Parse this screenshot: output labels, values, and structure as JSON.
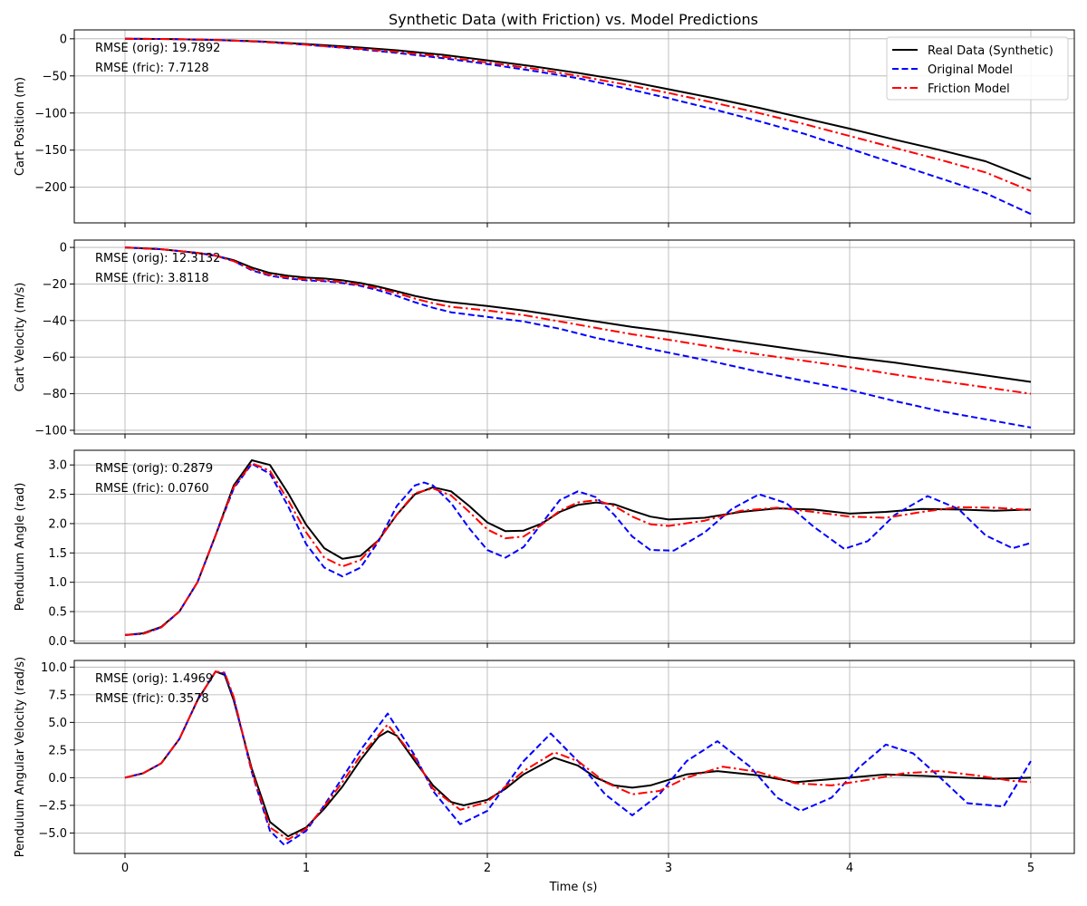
{
  "figure": {
    "title": "Synthetic Data (with Friction) vs. Model Predictions",
    "xlabel": "Time (s)"
  },
  "colors": {
    "real": "#000000",
    "original": "#0000ff",
    "friction": "#ff0000",
    "grid": "#b0b0b0"
  },
  "legend": {
    "placement": "upper-right of first panel",
    "entries": [
      {
        "label": "Real Data (Synthetic)",
        "color": "#000000",
        "style": "solid"
      },
      {
        "label": "Original Model",
        "color": "#0000ff",
        "style": "dashed"
      },
      {
        "label": "Friction Model",
        "color": "#ff0000",
        "style": "dashdot"
      }
    ]
  },
  "chart_data": [
    {
      "type": "line",
      "ylabel": "Cart Position (m)",
      "xlim": [
        -0.28,
        5.24
      ],
      "ylim": [
        -248,
        12
      ],
      "xticks": [
        0,
        1,
        2,
        3,
        4,
        5
      ],
      "xtick_labels": [],
      "yticks": [
        0,
        -50,
        -100,
        -150,
        -200
      ],
      "ytick_labels": [
        "0",
        "−50",
        "−100",
        "−150",
        "−200"
      ],
      "grid": true,
      "annotations": [
        "RMSE (orig): 19.7892",
        "RMSE (fric): 7.7128"
      ],
      "series": [
        {
          "name": "Real Data (Synthetic)",
          "key": "real",
          "x": [
            0,
            0.25,
            0.5,
            0.75,
            1,
            1.25,
            1.5,
            1.75,
            2,
            2.25,
            2.5,
            2.75,
            3,
            3.25,
            3.5,
            3.75,
            4,
            4.25,
            4.5,
            4.75,
            5
          ],
          "y": [
            0,
            -0.3,
            -1.5,
            -3.5,
            -7,
            -11,
            -15.5,
            -21.5,
            -29,
            -37,
            -46,
            -56,
            -68,
            -80,
            -93,
            -107,
            -121,
            -136,
            -150,
            -165,
            -189
          ]
        },
        {
          "name": "Original Model",
          "key": "original",
          "x": [
            0,
            0.25,
            0.5,
            0.75,
            1,
            1.25,
            1.5,
            1.75,
            2,
            2.25,
            2.5,
            2.75,
            3,
            3.25,
            3.5,
            3.75,
            4,
            4.25,
            4.5,
            4.75,
            5
          ],
          "y": [
            0,
            -0.3,
            -1.5,
            -4,
            -8,
            -13,
            -19,
            -26,
            -34,
            -43,
            -53,
            -66,
            -80,
            -95,
            -111,
            -128,
            -148,
            -168,
            -188,
            -208,
            -236
          ]
        },
        {
          "name": "Friction Model",
          "key": "friction",
          "x": [
            0,
            0.25,
            0.5,
            0.75,
            1,
            1.25,
            1.5,
            1.75,
            2,
            2.25,
            2.5,
            2.75,
            3,
            3.25,
            3.5,
            3.75,
            4,
            4.25,
            4.5,
            4.75,
            5
          ],
          "y": [
            0,
            -0.3,
            -1.5,
            -4,
            -8,
            -12.5,
            -17.5,
            -24,
            -32,
            -40,
            -50,
            -61,
            -73,
            -86,
            -100,
            -115,
            -131,
            -147,
            -163,
            -180,
            -205
          ]
        }
      ]
    },
    {
      "type": "line",
      "ylabel": "Cart Velocity (m/s)",
      "xlim": [
        -0.28,
        5.24
      ],
      "ylim": [
        -102,
        4
      ],
      "xticks": [
        0,
        1,
        2,
        3,
        4,
        5
      ],
      "xtick_labels": [],
      "yticks": [
        0,
        -20,
        -40,
        -60,
        -80,
        -100
      ],
      "ytick_labels": [
        "0",
        "−20",
        "−40",
        "−60",
        "−80",
        "−100"
      ],
      "grid": true,
      "annotations": [
        "RMSE (orig): 12.3132",
        "RMSE (fric): 3.8118"
      ],
      "series": [
        {
          "name": "Real Data (Synthetic)",
          "key": "real",
          "x": [
            0,
            0.2,
            0.4,
            0.5,
            0.6,
            0.7,
            0.8,
            0.9,
            1.0,
            1.1,
            1.2,
            1.3,
            1.4,
            1.5,
            1.6,
            1.7,
            1.8,
            2.0,
            2.2,
            2.4,
            2.6,
            2.8,
            3.0,
            3.25,
            3.5,
            3.75,
            4.0,
            4.25,
            4.5,
            4.75,
            5.0
          ],
          "y": [
            0,
            -1,
            -3,
            -4.5,
            -7,
            -11,
            -14,
            -15.5,
            -16.5,
            -17,
            -18,
            -19.5,
            -21.5,
            -24,
            -26.5,
            -28.5,
            -30,
            -32,
            -34.5,
            -37.5,
            -40.5,
            -43.5,
            -46,
            -49.5,
            -53,
            -56.5,
            -60,
            -63,
            -66.5,
            -70,
            -73.5
          ]
        },
        {
          "name": "Original Model",
          "key": "original",
          "x": [
            0,
            0.2,
            0.4,
            0.5,
            0.6,
            0.7,
            0.8,
            0.9,
            1.0,
            1.1,
            1.2,
            1.3,
            1.4,
            1.5,
            1.6,
            1.7,
            1.8,
            2.0,
            2.2,
            2.4,
            2.6,
            2.8,
            3.0,
            3.25,
            3.5,
            3.75,
            4.0,
            4.25,
            4.5,
            4.75,
            5.0
          ],
          "y": [
            0,
            -1,
            -3,
            -4.5,
            -7.5,
            -12.5,
            -15.5,
            -17,
            -18,
            -18.5,
            -19.5,
            -21,
            -23.5,
            -26.5,
            -30,
            -33,
            -35.5,
            -38,
            -40.5,
            -44.5,
            -49.5,
            -53.5,
            -57.5,
            -62.5,
            -68,
            -73,
            -78,
            -84,
            -89.5,
            -94,
            -98.5
          ]
        },
        {
          "name": "Friction Model",
          "key": "friction",
          "x": [
            0,
            0.2,
            0.4,
            0.5,
            0.6,
            0.7,
            0.8,
            0.9,
            1.0,
            1.1,
            1.2,
            1.3,
            1.4,
            1.5,
            1.6,
            1.7,
            1.8,
            2.0,
            2.2,
            2.4,
            2.6,
            2.8,
            3.0,
            3.25,
            3.5,
            3.75,
            4.0,
            4.25,
            4.5,
            4.75,
            5.0
          ],
          "y": [
            0,
            -1,
            -3,
            -4.5,
            -7.5,
            -12,
            -15,
            -16.5,
            -17.5,
            -18,
            -19,
            -20.5,
            -22.5,
            -25,
            -28,
            -30.5,
            -32.5,
            -34.5,
            -37,
            -40.5,
            -44,
            -47.5,
            -50.5,
            -54.5,
            -58.5,
            -62,
            -65.5,
            -69.5,
            -73,
            -76.5,
            -80
          ]
        }
      ]
    },
    {
      "type": "line",
      "ylabel": "Pendulum Angle (rad)",
      "xlim": [
        -0.28,
        5.24
      ],
      "ylim": [
        -0.04,
        3.25
      ],
      "xticks": [
        0,
        1,
        2,
        3,
        4,
        5
      ],
      "xtick_labels": [],
      "yticks": [
        0,
        0.5,
        1,
        1.5,
        2,
        2.5,
        3
      ],
      "ytick_labels": [
        "0.0",
        "0.5",
        "1.0",
        "1.5",
        "2.0",
        "2.5",
        "3.0"
      ],
      "grid": true,
      "annotations": [
        "RMSE (orig): 0.2879",
        "RMSE (fric): 0.0760"
      ],
      "series": [
        {
          "name": "Real Data (Synthetic)",
          "key": "real",
          "x": [
            0,
            0.1,
            0.2,
            0.3,
            0.4,
            0.5,
            0.6,
            0.7,
            0.8,
            0.9,
            1.0,
            1.1,
            1.2,
            1.3,
            1.4,
            1.5,
            1.6,
            1.7,
            1.8,
            1.9,
            2.0,
            2.1,
            2.2,
            2.3,
            2.4,
            2.5,
            2.6,
            2.7,
            2.8,
            2.9,
            3.0,
            3.2,
            3.4,
            3.6,
            3.8,
            4.0,
            4.2,
            4.4,
            4.6,
            4.8,
            5.0
          ],
          "y": [
            0.1,
            0.13,
            0.24,
            0.5,
            1.0,
            1.8,
            2.65,
            3.08,
            3.0,
            2.52,
            1.98,
            1.58,
            1.4,
            1.45,
            1.72,
            2.15,
            2.5,
            2.62,
            2.55,
            2.3,
            2.02,
            1.87,
            1.88,
            2.0,
            2.2,
            2.32,
            2.36,
            2.33,
            2.22,
            2.12,
            2.07,
            2.1,
            2.2,
            2.26,
            2.24,
            2.17,
            2.2,
            2.25,
            2.24,
            2.22,
            2.24
          ]
        },
        {
          "name": "Original Model",
          "key": "original",
          "x": [
            0,
            0.1,
            0.2,
            0.3,
            0.4,
            0.5,
            0.6,
            0.7,
            0.8,
            0.9,
            1.0,
            1.1,
            1.2,
            1.3,
            1.4,
            1.5,
            1.6,
            1.65,
            1.7,
            1.8,
            1.9,
            2.0,
            2.1,
            2.2,
            2.3,
            2.4,
            2.5,
            2.6,
            2.7,
            2.8,
            2.9,
            3.03,
            3.2,
            3.35,
            3.5,
            3.65,
            3.8,
            3.97,
            4.1,
            4.25,
            4.43,
            4.6,
            4.75,
            4.9,
            5.0
          ],
          "y": [
            0.1,
            0.12,
            0.23,
            0.5,
            1.0,
            1.8,
            2.6,
            3.02,
            2.85,
            2.3,
            1.65,
            1.25,
            1.1,
            1.25,
            1.7,
            2.3,
            2.65,
            2.7,
            2.65,
            2.35,
            1.92,
            1.55,
            1.42,
            1.6,
            2.0,
            2.4,
            2.55,
            2.45,
            2.15,
            1.78,
            1.55,
            1.54,
            1.85,
            2.25,
            2.5,
            2.35,
            1.95,
            1.57,
            1.7,
            2.15,
            2.47,
            2.25,
            1.8,
            1.58,
            1.67
          ]
        },
        {
          "name": "Friction Model",
          "key": "friction",
          "x": [
            0,
            0.1,
            0.2,
            0.3,
            0.4,
            0.5,
            0.6,
            0.7,
            0.8,
            0.9,
            1.0,
            1.1,
            1.2,
            1.3,
            1.4,
            1.5,
            1.6,
            1.7,
            1.8,
            1.9,
            2.0,
            2.1,
            2.2,
            2.3,
            2.4,
            2.5,
            2.6,
            2.7,
            2.8,
            2.9,
            3.0,
            3.2,
            3.4,
            3.6,
            3.8,
            4.0,
            4.2,
            4.4,
            4.6,
            4.8,
            5.0
          ],
          "y": [
            0.1,
            0.12,
            0.23,
            0.5,
            1.0,
            1.8,
            2.62,
            3.03,
            2.9,
            2.4,
            1.85,
            1.42,
            1.27,
            1.38,
            1.72,
            2.15,
            2.52,
            2.6,
            2.48,
            2.2,
            1.9,
            1.75,
            1.78,
            1.98,
            2.22,
            2.36,
            2.4,
            2.3,
            2.12,
            1.99,
            1.96,
            2.05,
            2.22,
            2.27,
            2.2,
            2.12,
            2.1,
            2.2,
            2.28,
            2.27,
            2.23
          ]
        }
      ]
    },
    {
      "type": "line",
      "ylabel": "Pendulum Angular Velocity (rad/s)",
      "xlim": [
        -0.28,
        5.24
      ],
      "ylim": [
        -6.85,
        10.6
      ],
      "xticks": [
        0,
        1,
        2,
        3,
        4,
        5
      ],
      "xtick_labels": [
        "0",
        "1",
        "2",
        "3",
        "4",
        "5"
      ],
      "yticks": [
        10,
        7.5,
        5,
        2.5,
        0,
        -2.5,
        -5
      ],
      "ytick_labels": [
        "10.0",
        "7.5",
        "5.0",
        "2.5",
        "0.0",
        "−2.5",
        "−5.0"
      ],
      "grid": true,
      "annotations": [
        "RMSE (orig): 1.4969",
        "RMSE (fric): 0.3578"
      ],
      "series": [
        {
          "name": "Real Data (Synthetic)",
          "key": "real",
          "x": [
            0,
            0.1,
            0.2,
            0.3,
            0.4,
            0.5,
            0.55,
            0.6,
            0.7,
            0.8,
            0.9,
            1.0,
            1.1,
            1.2,
            1.3,
            1.4,
            1.45,
            1.5,
            1.6,
            1.7,
            1.8,
            1.87,
            2.0,
            2.1,
            2.2,
            2.37,
            2.5,
            2.6,
            2.7,
            2.8,
            2.9,
            3.0,
            3.1,
            3.27,
            3.5,
            3.7,
            4.0,
            4.2,
            4.5,
            4.8,
            5.0
          ],
          "y": [
            0,
            0.4,
            1.3,
            3.5,
            7.0,
            9.6,
            9.3,
            7.0,
            0.8,
            -4.0,
            -5.3,
            -4.5,
            -2.8,
            -0.8,
            1.6,
            3.7,
            4.2,
            3.8,
            1.5,
            -0.7,
            -2.2,
            -2.5,
            -2.0,
            -1.0,
            0.3,
            1.8,
            1.1,
            0.0,
            -0.7,
            -0.9,
            -0.7,
            -0.2,
            0.3,
            0.6,
            0.2,
            -0.4,
            0.0,
            0.3,
            0.1,
            -0.1,
            0.0
          ]
        },
        {
          "name": "Original Model",
          "key": "original",
          "x": [
            0,
            0.1,
            0.2,
            0.3,
            0.4,
            0.5,
            0.55,
            0.6,
            0.7,
            0.8,
            0.88,
            1.0,
            1.1,
            1.2,
            1.3,
            1.45,
            1.6,
            1.7,
            1.85,
            2.0,
            2.2,
            2.35,
            2.5,
            2.65,
            2.8,
            2.95,
            3.1,
            3.27,
            3.45,
            3.6,
            3.73,
            3.9,
            4.05,
            4.2,
            4.35,
            4.5,
            4.65,
            4.85,
            5.0
          ],
          "y": [
            0,
            0.4,
            1.3,
            3.5,
            7.0,
            9.6,
            9.4,
            7.2,
            0.5,
            -4.8,
            -6.1,
            -4.8,
            -2.5,
            0.0,
            2.5,
            5.8,
            2.0,
            -1.2,
            -4.2,
            -3.0,
            1.5,
            4.0,
            1.5,
            -1.5,
            -3.4,
            -1.5,
            1.5,
            3.3,
            1.0,
            -1.8,
            -3.0,
            -1.8,
            0.9,
            3.0,
            2.2,
            0.0,
            -2.3,
            -2.6,
            1.5
          ]
        },
        {
          "name": "Friction Model",
          "key": "friction",
          "x": [
            0,
            0.1,
            0.2,
            0.3,
            0.4,
            0.5,
            0.55,
            0.6,
            0.7,
            0.8,
            0.9,
            1.0,
            1.1,
            1.2,
            1.3,
            1.45,
            1.6,
            1.7,
            1.85,
            2.0,
            2.2,
            2.37,
            2.5,
            2.65,
            2.8,
            2.95,
            3.1,
            3.3,
            3.5,
            3.7,
            3.9,
            4.1,
            4.3,
            4.5,
            4.7,
            4.9,
            5.0
          ],
          "y": [
            0,
            0.4,
            1.3,
            3.5,
            7.0,
            9.6,
            9.5,
            7.3,
            0.6,
            -4.5,
            -5.6,
            -4.6,
            -2.6,
            -0.4,
            2.0,
            4.8,
            1.8,
            -1.0,
            -2.9,
            -2.2,
            0.6,
            2.3,
            1.5,
            -0.4,
            -1.5,
            -1.2,
            0.0,
            1.0,
            0.5,
            -0.5,
            -0.7,
            -0.2,
            0.4,
            0.6,
            0.2,
            -0.3,
            -0.4
          ]
        }
      ]
    }
  ]
}
